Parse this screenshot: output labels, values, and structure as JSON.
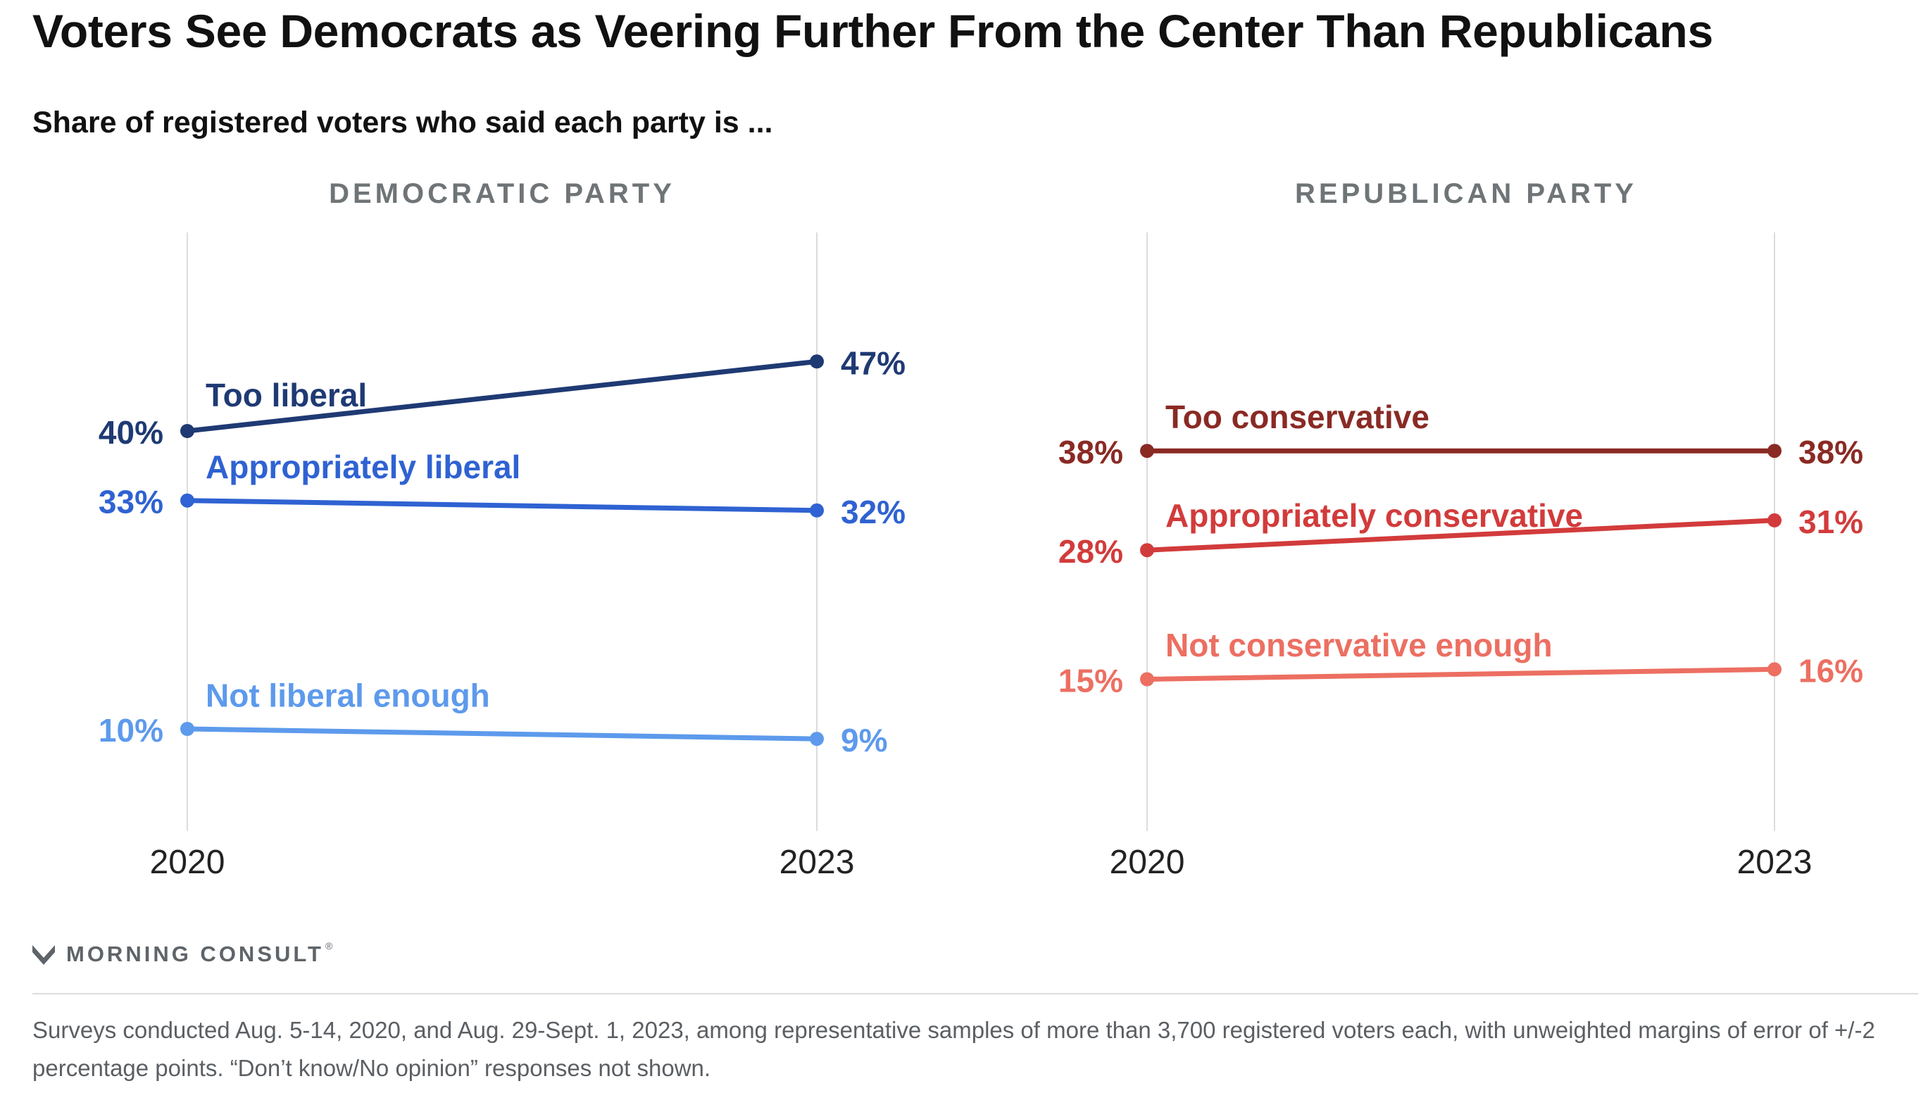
{
  "title": "Voters See Democrats as Veering Further From the Center Than Republicans",
  "subtitle": "Share of registered voters who said each party is ...",
  "colors": {
    "dem_too": "#1f3a73",
    "dem_appropriately": "#2f62d2",
    "dem_not_enough": "#5d9aec",
    "rep_too": "#8a2a24",
    "rep_appropriately": "#d23b3b",
    "rep_not_enough": "#ec6f62",
    "panel_title": "#6f7477",
    "axis_label": "#222222",
    "gridline": "#dcdcdc"
  },
  "chart_data": [
    {
      "type": "line",
      "title": "DEMOCRATIC PARTY",
      "x": [
        "2020",
        "2023"
      ],
      "ylim": [
        0,
        55
      ],
      "grid": "vertical lines at each year",
      "series": [
        {
          "name": "Too liberal",
          "values": [
            40,
            47
          ],
          "labels": [
            "40%",
            "47%"
          ],
          "color": "#1f3a73"
        },
        {
          "name": "Appropriately liberal",
          "values": [
            33,
            32
          ],
          "labels": [
            "33%",
            "32%"
          ],
          "color": "#2f62d2"
        },
        {
          "name": "Not liberal enough",
          "values": [
            10,
            9
          ],
          "labels": [
            "10%",
            "9%"
          ],
          "color": "#5d9aec"
        }
      ]
    },
    {
      "type": "line",
      "title": "REPUBLICAN PARTY",
      "x": [
        "2020",
        "2023"
      ],
      "ylim": [
        0,
        55
      ],
      "grid": "vertical lines at each year",
      "series": [
        {
          "name": "Too conservative",
          "values": [
            38,
            38
          ],
          "labels": [
            "38%",
            "38%"
          ],
          "color": "#8a2a24"
        },
        {
          "name": "Appropriately conservative",
          "values": [
            28,
            31
          ],
          "labels": [
            "28%",
            "31%"
          ],
          "color": "#d23b3b"
        },
        {
          "name": "Not conservative enough",
          "values": [
            15,
            16
          ],
          "labels": [
            "15%",
            "16%"
          ],
          "color": "#ec6f62"
        }
      ]
    }
  ],
  "footer": {
    "brand": "MORNING CONSULT",
    "brand_mark": "®",
    "logo_icon": "morning-consult-m-logo",
    "note": "Surveys conducted Aug. 5-14, 2020, and Aug. 29-Sept. 1, 2023, among representative samples of more than 3,700 registered voters each, with unweighted margins of error of +/-2 percentage points. “Don’t know/No opinion” responses not shown."
  }
}
